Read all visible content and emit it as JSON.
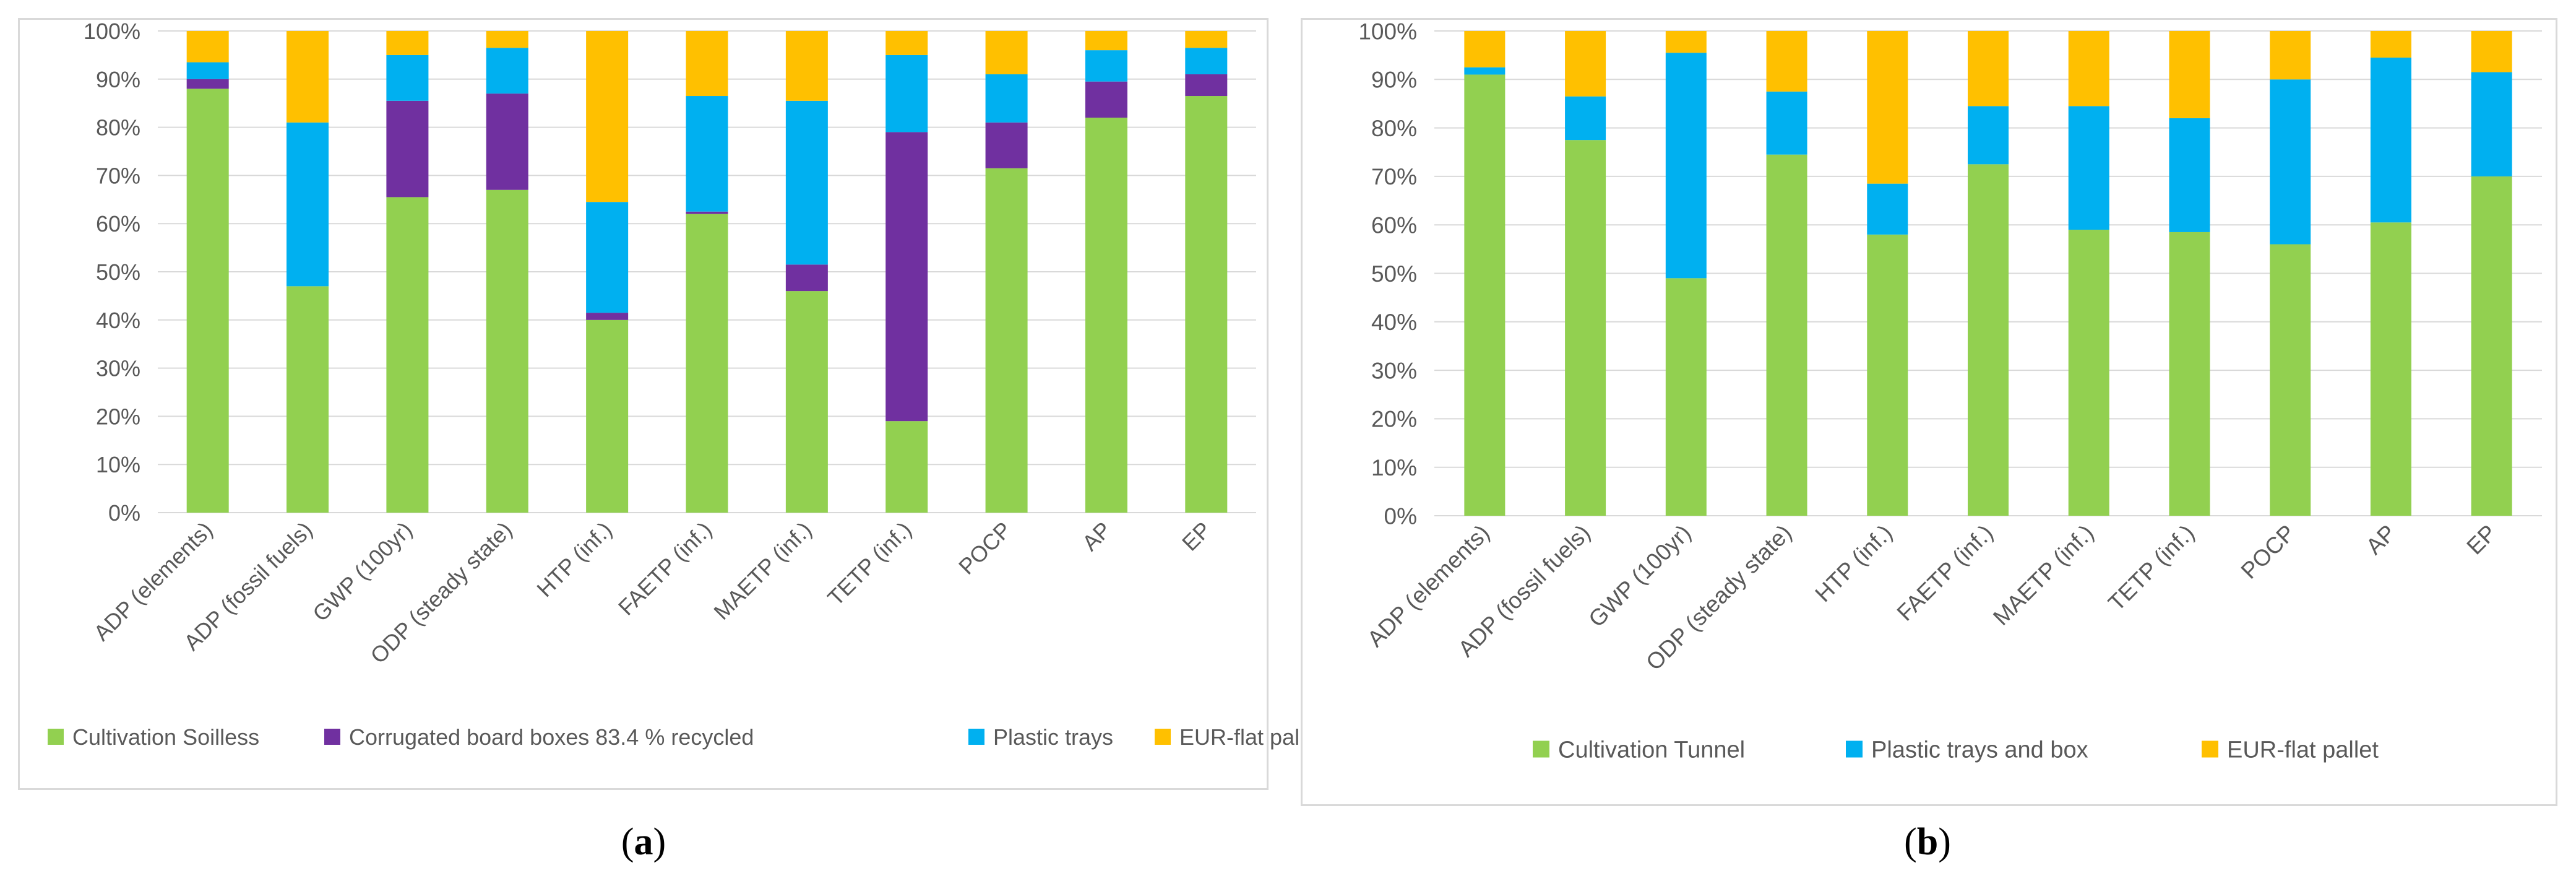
{
  "chart_data": [
    {
      "id": "a",
      "type": "bar",
      "stacked": true,
      "percent": true,
      "title": "",
      "xlabel": "",
      "ylabel": "",
      "ylim": [
        0,
        100
      ],
      "yticks": [
        "0%",
        "10%",
        "20%",
        "30%",
        "40%",
        "50%",
        "60%",
        "70%",
        "80%",
        "90%",
        "100%"
      ],
      "grid": true,
      "legend_position": "bottom",
      "categories": [
        "ADP (elements)",
        "ADP (fossil fuels)",
        "GWP (100yr)",
        "ODP (steady state)",
        "HTP (inf.)",
        "FAETP (inf.)",
        "MAETP (inf.)",
        "TETP (inf.)",
        "POCP",
        "AP",
        "EP"
      ],
      "series": [
        {
          "name": "Cultivation Soilless",
          "color": "#92d050",
          "values": [
            88,
            47,
            65.5,
            67,
            40,
            62,
            46,
            19,
            71.5,
            82,
            86.5
          ]
        },
        {
          "name": "Corrugated board boxes 83.4 % recycled",
          "color": "#7030a0",
          "values": [
            2,
            0,
            20,
            20,
            1.5,
            0.5,
            5.5,
            60,
            9.5,
            7.5,
            4.5
          ]
        },
        {
          "name": "Plastic trays",
          "color": "#00b0f0",
          "values": [
            3.5,
            34,
            9.5,
            9.5,
            23,
            24,
            34,
            16,
            10,
            6.5,
            5.5
          ]
        },
        {
          "name": "EUR-flat pallet",
          "color": "#ffc000",
          "values": [
            6.5,
            19,
            5,
            3.5,
            35.5,
            13.5,
            14.5,
            5,
            9,
            4,
            3.5
          ]
        }
      ]
    },
    {
      "id": "b",
      "type": "bar",
      "stacked": true,
      "percent": true,
      "title": "",
      "xlabel": "",
      "ylabel": "",
      "ylim": [
        0,
        100
      ],
      "yticks": [
        "0%",
        "10%",
        "20%",
        "30%",
        "40%",
        "50%",
        "60%",
        "70%",
        "80%",
        "90%",
        "100%"
      ],
      "grid": true,
      "legend_position": "bottom",
      "categories": [
        "ADP (elements)",
        "ADP (fossil fuels)",
        "GWP (100yr)",
        "ODP (steady state)",
        "HTP (inf.)",
        "FAETP (inf.)",
        "MAETP (inf.)",
        "TETP (inf.)",
        "POCP",
        "AP",
        "EP"
      ],
      "series": [
        {
          "name": "Cultivation Tunnel",
          "color": "#92d050",
          "values": [
            91,
            77.5,
            49,
            74.5,
            58,
            72.5,
            59,
            58.5,
            56,
            60.5,
            70
          ]
        },
        {
          "name": "Plastic trays and box",
          "color": "#00b0f0",
          "values": [
            1.5,
            9,
            46.5,
            13,
            10.5,
            12,
            25.5,
            23.5,
            34,
            34,
            21.5
          ]
        },
        {
          "name": "EUR-flat pallet",
          "color": "#ffc000",
          "values": [
            7.5,
            13.5,
            4.5,
            12.5,
            31.5,
            15.5,
            15.5,
            18,
            10,
            5.5,
            8.5
          ]
        }
      ]
    }
  ],
  "captions": {
    "a": "a",
    "b": "b"
  },
  "colors": {
    "grid": "#d9d9d9",
    "text": "#595959",
    "border": "#d9d9d9"
  }
}
